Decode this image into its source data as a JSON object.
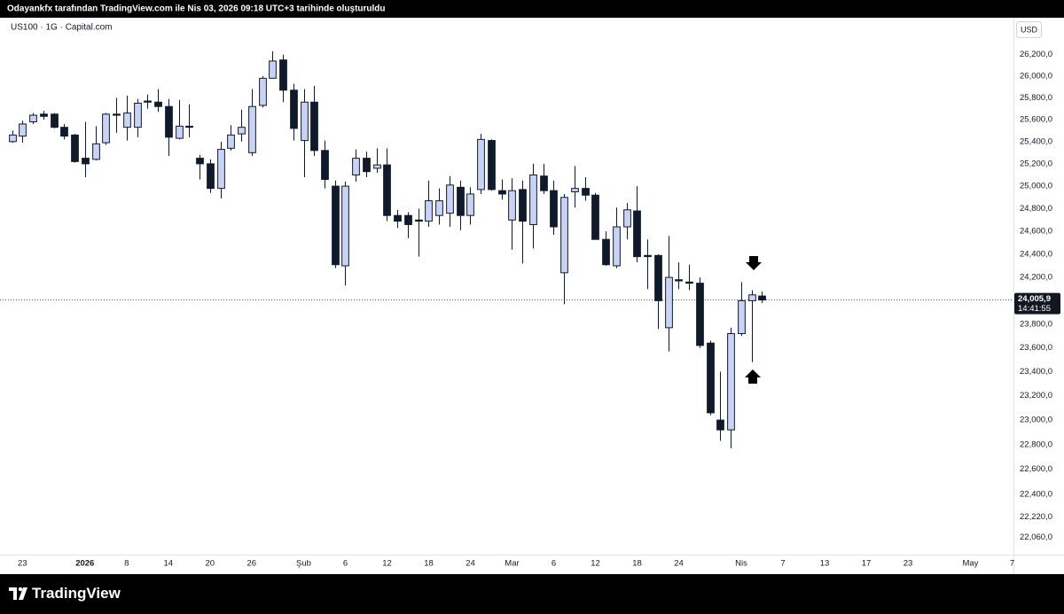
{
  "header": {
    "text": "Odayankfx tarafından TradingView.com ile Nis 03, 2026 09:18 UTC+3 tarihinde oluşturuldu"
  },
  "footer": {
    "brand": "TradingView"
  },
  "chart_data": {
    "type": "candlestick",
    "symbol": "US100 · 1G · Capital.com",
    "currency": "USD",
    "log_scale": true,
    "grid": false,
    "up_color": "#c9d3f5",
    "down_color": "#0f1a2b",
    "wick_color": "#0f1a2b",
    "xlim": [
      -1.15,
      96.13
    ],
    "ylim": [
      21930,
      26530
    ],
    "xticks": [
      {
        "value": 1,
        "label": "23"
      },
      {
        "value": 7,
        "label": "2026"
      },
      {
        "value": 11,
        "label": "8"
      },
      {
        "value": 15,
        "label": "14"
      },
      {
        "value": 19,
        "label": "20"
      },
      {
        "value": 23,
        "label": "26"
      },
      {
        "value": 28,
        "label": "Şub"
      },
      {
        "value": 32,
        "label": "6"
      },
      {
        "value": 36,
        "label": "12"
      },
      {
        "value": 40,
        "label": "18"
      },
      {
        "value": 44,
        "label": "24"
      },
      {
        "value": 48,
        "label": "Mar"
      },
      {
        "value": 52,
        "label": "6"
      },
      {
        "value": 56,
        "label": "12"
      },
      {
        "value": 60,
        "label": "18"
      },
      {
        "value": 64,
        "label": "24"
      },
      {
        "value": 70,
        "label": "Nis"
      },
      {
        "value": 74,
        "label": "7"
      },
      {
        "value": 78,
        "label": "13"
      },
      {
        "value": 82,
        "label": "17"
      },
      {
        "value": 86,
        "label": "23"
      },
      {
        "value": 92,
        "label": "May"
      },
      {
        "value": 96,
        "label": "7"
      }
    ],
    "yticks": [
      {
        "value": 26200,
        "label": "26,200,0"
      },
      {
        "value": 26000,
        "label": "26,000,0"
      },
      {
        "value": 25800,
        "label": "25,800,0"
      },
      {
        "value": 25600,
        "label": "25,600,0"
      },
      {
        "value": 25400,
        "label": "25,400,0"
      },
      {
        "value": 25200,
        "label": "25,200,0"
      },
      {
        "value": 25000,
        "label": "25,000,0"
      },
      {
        "value": 24800,
        "label": "24,800,0"
      },
      {
        "value": 24600,
        "label": "24,600,0"
      },
      {
        "value": 24400,
        "label": "24,400,0"
      },
      {
        "value": 24200,
        "label": "24,200,0"
      },
      {
        "value": 23800,
        "label": "23,800,0"
      },
      {
        "value": 23600,
        "label": "23,600,0"
      },
      {
        "value": 23400,
        "label": "23,400,0"
      },
      {
        "value": 23200,
        "label": "23,200,0"
      },
      {
        "value": 23000,
        "label": "23,000,0"
      },
      {
        "value": 22800,
        "label": "22,800,0"
      },
      {
        "value": 22600,
        "label": "22,600,0"
      },
      {
        "value": 22400,
        "label": "22,400,0"
      },
      {
        "value": 22220,
        "label": "22,220,0"
      },
      {
        "value": 22060,
        "label": "22,060,0"
      }
    ],
    "last_price": {
      "value": 24005.9,
      "label": "24,005,9"
    },
    "countdown": "14:41:55",
    "x": [
      0,
      1,
      2,
      3,
      4,
      5,
      6,
      7,
      8,
      9,
      10,
      11,
      12,
      13,
      14,
      15,
      16,
      17,
      18,
      19,
      20,
      21,
      22,
      23,
      24,
      25,
      26,
      27,
      28,
      29,
      30,
      31,
      32,
      33,
      34,
      35,
      36,
      37,
      38,
      39,
      40,
      41,
      42,
      43,
      44,
      45,
      46,
      47,
      48,
      49,
      50,
      51,
      52,
      53,
      54,
      55,
      56,
      57,
      58,
      59,
      60,
      61,
      62,
      63,
      64,
      65,
      66,
      67,
      68,
      69,
      70,
      71,
      72
    ],
    "open": [
      25400,
      25450,
      25580,
      25650,
      25650,
      25530,
      25460,
      25250,
      25240,
      25390,
      25650,
      25530,
      25530,
      25770,
      25760,
      25720,
      25430,
      25540,
      25250,
      25200,
      24980,
      25340,
      25470,
      25300,
      25730,
      25980,
      26150,
      25870,
      25410,
      25760,
      25320,
      25000,
      24300,
      25100,
      25250,
      25160,
      25190,
      24740,
      24740,
      24700,
      24690,
      24740,
      24760,
      24990,
      24740,
      24970,
      25410,
      24960,
      24700,
      24970,
      24660,
      25090,
      24960,
      24240,
      24950,
      24980,
      24920,
      24530,
      24300,
      24640,
      24780,
      24390,
      24390,
      23770,
      24180,
      24160,
      24150,
      23640,
      23000,
      22920,
      23720,
      24000,
      24040
    ],
    "high": [
      25500,
      25590,
      25660,
      25680,
      25660,
      25560,
      25470,
      25580,
      25540,
      25660,
      25800,
      25820,
      25790,
      25830,
      25880,
      25790,
      25780,
      25740,
      25280,
      25240,
      25400,
      25550,
      25690,
      25880,
      26000,
      26230,
      26200,
      25930,
      25880,
      25910,
      25410,
      25050,
      25040,
      25330,
      25310,
      25340,
      25340,
      24790,
      24770,
      24800,
      25050,
      24980,
      25090,
      25050,
      24990,
      25470,
      25420,
      25060,
      25070,
      25050,
      25200,
      25200,
      25050,
      24930,
      25180,
      25080,
      24940,
      24600,
      24810,
      24850,
      25000,
      24530,
      24400,
      24560,
      24330,
      24310,
      24200,
      23660,
      23400,
      23770,
      24160,
      24090,
      24080
    ],
    "low": [
      25390,
      25390,
      25560,
      25600,
      25520,
      25420,
      25210,
      25080,
      25230,
      25370,
      25480,
      25410,
      25440,
      25700,
      25670,
      25270,
      25420,
      25440,
      25060,
      24940,
      24890,
      25320,
      25400,
      25270,
      25710,
      25980,
      25760,
      25410,
      25080,
      25270,
      24980,
      24280,
      24130,
      25040,
      25080,
      25120,
      24690,
      24630,
      24540,
      24380,
      24640,
      24660,
      24640,
      24610,
      24660,
      24930,
      24960,
      24880,
      24440,
      24320,
      24450,
      24930,
      24570,
      23970,
      24810,
      24870,
      24530,
      24300,
      24280,
      24530,
      24330,
      24100,
      23760,
      23570,
      24100,
      24090,
      23600,
      23040,
      22830,
      22770,
      23700,
      23480,
      23980
    ],
    "close": [
      25460,
      25560,
      25640,
      25630,
      25530,
      25450,
      25220,
      25200,
      25380,
      25650,
      25640,
      25660,
      25750,
      25760,
      25720,
      25440,
      25540,
      25530,
      25200,
      24980,
      25330,
      25460,
      25530,
      25720,
      25980,
      26140,
      25870,
      25520,
      25760,
      25320,
      25060,
      24310,
      25000,
      25250,
      25130,
      25190,
      24740,
      24690,
      24660,
      24690,
      24870,
      24870,
      25010,
      24740,
      24930,
      25420,
      24970,
      24930,
      24960,
      24690,
      25100,
      24960,
      24640,
      24900,
      24980,
      24920,
      24530,
      24310,
      24640,
      24790,
      24380,
      24380,
      24000,
      24200,
      24170,
      24150,
      23620,
      23060,
      22920,
      23720,
      24000,
      24050,
      24006
    ]
  }
}
